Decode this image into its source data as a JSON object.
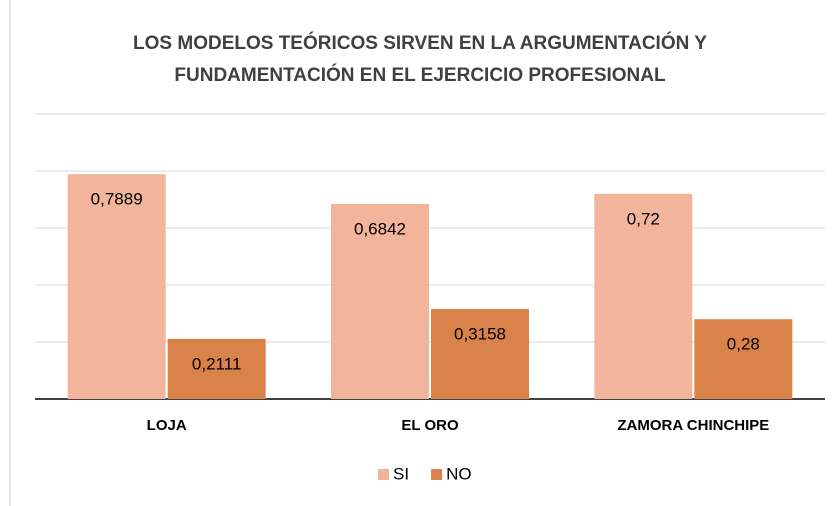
{
  "chart_data": {
    "type": "bar",
    "title": "LOS MODELOS TEÓRICOS SIRVEN EN LA ARGUMENTACIÓN Y FUNDAMENTACIÓN EN EL EJERCICIO PROFESIONAL",
    "categories": [
      "LOJA",
      "EL ORO",
      "ZAMORA CHINCHIPE"
    ],
    "series": [
      {
        "name": "SI",
        "color": "#f2b49b",
        "values": [
          0.7889,
          0.6842,
          0.72
        ],
        "value_labels": [
          "0,7889",
          "0,6842",
          "0,72"
        ]
      },
      {
        "name": "NO",
        "color": "#d9834a",
        "values": [
          0.2111,
          0.3158,
          0.28
        ],
        "value_labels": [
          "0,2111",
          "0,3158",
          "0,28"
        ]
      }
    ],
    "ylim": [
      0,
      1
    ],
    "yticks": [
      0,
      0.2,
      0.4,
      0.6,
      0.8,
      1
    ],
    "grid": true,
    "legend": "bottom"
  }
}
